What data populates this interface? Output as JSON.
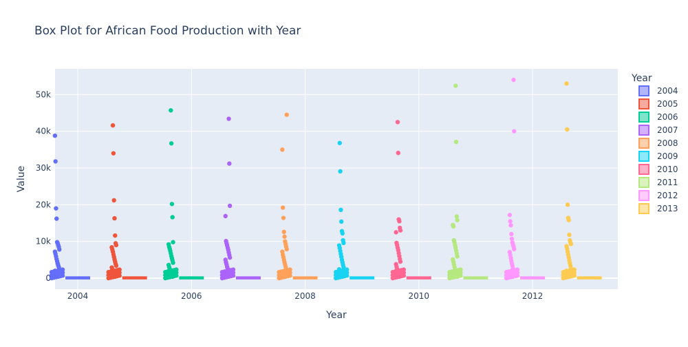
{
  "chart_data": {
    "type": "box",
    "title": "Box Plot for African Food Production with Year",
    "xlabel": "Year",
    "ylabel": "Value",
    "legend_title": "Year",
    "x_ticks": [
      "2004",
      "2006",
      "2008",
      "2010",
      "2012"
    ],
    "x_tick_values": [
      2004,
      2006,
      2008,
      2010,
      2012
    ],
    "xlim": [
      2003.6,
      2013.5
    ],
    "y_ticks": [
      "0",
      "10k",
      "20k",
      "30k",
      "40k",
      "50k"
    ],
    "y_tick_values": [
      0,
      10000,
      20000,
      30000,
      40000,
      50000
    ],
    "ylim": [
      -3000,
      57000
    ],
    "grid": true,
    "legend_position": "right",
    "plot_background": "#E5ECF6",
    "box_summary": {
      "q1": 0,
      "median": 20,
      "q3": 120
    },
    "series": [
      {
        "name": "2004",
        "year": 2004,
        "color": "#636EFA",
        "outliers": [
          38800,
          31800,
          19000,
          16200,
          9800,
          9500,
          9000,
          8500,
          7800,
          7200,
          6600,
          5900,
          5200,
          4600,
          4000,
          3500,
          3000,
          2500,
          2000,
          1600,
          1200,
          800,
          500
        ]
      },
      {
        "name": "2005",
        "year": 2005,
        "color": "#EF553B",
        "outliers": [
          41600,
          34000,
          21200,
          16300,
          11600,
          9500,
          9000,
          8400,
          7800,
          7200,
          6500,
          5800,
          5100,
          4500,
          3900,
          3400,
          2900,
          2400,
          1900,
          1500,
          1100,
          700,
          400
        ]
      },
      {
        "name": "2006",
        "year": 2006,
        "color": "#00CC96",
        "outliers": [
          45700,
          36700,
          20200,
          16600,
          9800,
          9200,
          8500,
          8000,
          7400,
          6700,
          6000,
          5400,
          4800,
          4200,
          3600,
          3000,
          2500,
          2000,
          1500,
          1100,
          700,
          400
        ]
      },
      {
        "name": "2007",
        "year": 2007,
        "color": "#AB63FA",
        "outliers": [
          43400,
          31200,
          19700,
          16900,
          10100,
          9500,
          8900,
          8300,
          7700,
          7000,
          6300,
          5600,
          5000,
          4300,
          3700,
          3100,
          2600,
          2100,
          1600,
          1200,
          800,
          400
        ]
      },
      {
        "name": "2008",
        "year": 2008,
        "color": "#FFA15A",
        "outliers": [
          44500,
          35000,
          19200,
          16400,
          12600,
          11300,
          10000,
          9300,
          8600,
          7900,
          7200,
          6400,
          5700,
          5000,
          4300,
          3700,
          3100,
          2500,
          2000,
          1500,
          1000,
          500
        ]
      },
      {
        "name": "2009",
        "year": 2009,
        "color": "#19D3F3",
        "outliers": [
          36800,
          29100,
          18600,
          15400,
          12800,
          12200,
          10300,
          9600,
          8900,
          8200,
          7400,
          6600,
          5800,
          5000,
          4300,
          3600,
          3000,
          2400,
          1800,
          1300,
          800,
          400
        ]
      },
      {
        "name": "2010",
        "year": 2010,
        "color": "#FF6692",
        "outliers": [
          42500,
          34100,
          16000,
          15500,
          13700,
          13000,
          12500,
          9600,
          9000,
          8300,
          7600,
          6800,
          6000,
          5200,
          4500,
          3800,
          3100,
          2500,
          1900,
          1400,
          900,
          400
        ]
      },
      {
        "name": "2011",
        "year": 2011,
        "color": "#B6E880",
        "outliers": [
          52400,
          37100,
          16800,
          15800,
          14500,
          14100,
          10300,
          9700,
          9000,
          8300,
          7500,
          6700,
          5900,
          5100,
          4400,
          3700,
          3000,
          2400,
          1800,
          1300,
          800,
          400
        ]
      },
      {
        "name": "2012",
        "year": 2012,
        "color": "#FF97FF",
        "outliers": [
          54000,
          40000,
          17200,
          15500,
          14400,
          12000,
          10700,
          9700,
          9100,
          8600,
          7900,
          7100,
          6300,
          5500,
          4700,
          4000,
          3300,
          2600,
          2000,
          1400,
          900,
          400
        ]
      },
      {
        "name": "2013",
        "year": 2013,
        "color": "#FECB52",
        "outliers": [
          53000,
          40500,
          20000,
          16400,
          15800,
          11800,
          10300,
          9700,
          9300,
          8700,
          8000,
          7200,
          6400,
          5600,
          4800,
          4100,
          3400,
          2700,
          2000,
          1400,
          900,
          400
        ]
      }
    ]
  }
}
